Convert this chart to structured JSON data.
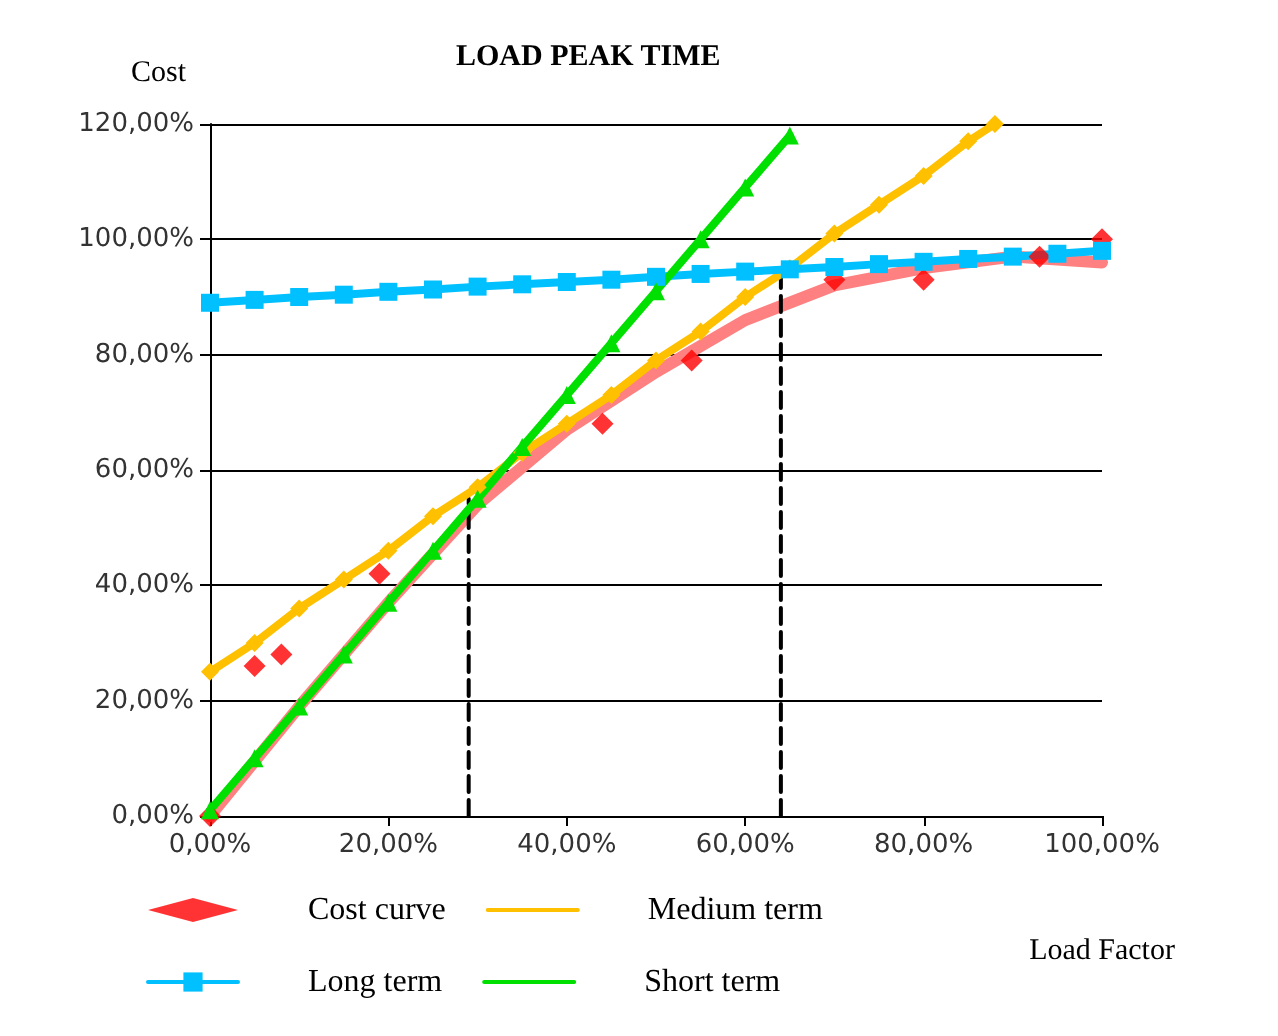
{
  "chart_data": {
    "type": "line",
    "title": "LOAD PEAK TIME",
    "xlabel": "Load Factor",
    "ylabel": "Cost",
    "xlim": [
      0,
      100
    ],
    "ylim": [
      0,
      120
    ],
    "xticks": [
      {
        "value": 0,
        "label": "0,00%"
      },
      {
        "value": 20,
        "label": "20,00%"
      },
      {
        "value": 40,
        "label": "40,00%"
      },
      {
        "value": 60,
        "label": "60,00%"
      },
      {
        "value": 80,
        "label": "80,00%"
      },
      {
        "value": 100,
        "label": "100,00%"
      }
    ],
    "yticks": [
      {
        "value": 0,
        "label": "0,00%"
      },
      {
        "value": 20,
        "label": "20,00%"
      },
      {
        "value": 40,
        "label": "40,00%"
      },
      {
        "value": 60,
        "label": "60,00%"
      },
      {
        "value": 80,
        "label": "80,00%"
      },
      {
        "value": 100,
        "label": "100,00%"
      },
      {
        "value": 120,
        "label": "120,00%"
      }
    ],
    "grid": "y",
    "legend": "bottom",
    "series": [
      {
        "name": "Cost curve",
        "type": "scatter",
        "marker": "diamond",
        "color": "#ff0000",
        "x": [
          0,
          5,
          8,
          19,
          44,
          54,
          70,
          80,
          93,
          100
        ],
        "values": [
          0,
          26,
          28,
          42,
          68,
          79,
          93,
          93,
          97,
          100
        ]
      },
      {
        "marker": "none",
        "color": "#ff8080",
        "x": [
          0,
          10,
          20,
          30,
          40,
          50,
          60,
          70,
          80,
          90,
          100
        ],
        "values": [
          0,
          19,
          37,
          54,
          67,
          77,
          86,
          92,
          95,
          97,
          96
        ]
      },
      {
        "name": "Medium term",
        "marker": "diamond",
        "color": "#ffc000",
        "x": [
          0,
          5,
          10,
          15,
          20,
          25,
          30,
          35,
          40,
          45,
          50,
          55,
          60,
          65,
          70,
          75,
          80,
          85,
          88
        ],
        "values": [
          25,
          30,
          36,
          41,
          46,
          52,
          57,
          63,
          68,
          73,
          79,
          84,
          90,
          95,
          101,
          106,
          111,
          117,
          120
        ]
      },
      {
        "name": "Long term",
        "marker": "square",
        "color": "#00c0ff",
        "x": [
          0,
          5,
          10,
          15,
          20,
          25,
          30,
          35,
          40,
          45,
          50,
          55,
          60,
          65,
          70,
          75,
          80,
          85,
          90,
          95,
          100
        ],
        "values": [
          89,
          89.5,
          90,
          90.4,
          90.9,
          91.3,
          91.8,
          92.2,
          92.6,
          93,
          93.5,
          94,
          94.4,
          94.8,
          95.2,
          95.7,
          96.1,
          96.6,
          97,
          97.5,
          98
        ]
      },
      {
        "name": "Short term",
        "marker": "triangle",
        "color": "#00e000",
        "x": [
          0,
          5,
          10,
          15,
          20,
          25,
          30,
          35,
          40,
          45,
          50,
          55,
          60,
          65
        ],
        "values": [
          1,
          10,
          19,
          28,
          37,
          46,
          55,
          64,
          73,
          82,
          91,
          100,
          109,
          118
        ]
      },
      {
        "marker": "none",
        "line_style": "dashed",
        "color": "#000000",
        "x": [
          29,
          29
        ],
        "values": [
          0,
          55
        ]
      },
      {
        "marker": "none",
        "line_style": "dashed",
        "color": "#000000",
        "x": [
          64,
          64
        ],
        "values": [
          0,
          95
        ]
      }
    ]
  }
}
